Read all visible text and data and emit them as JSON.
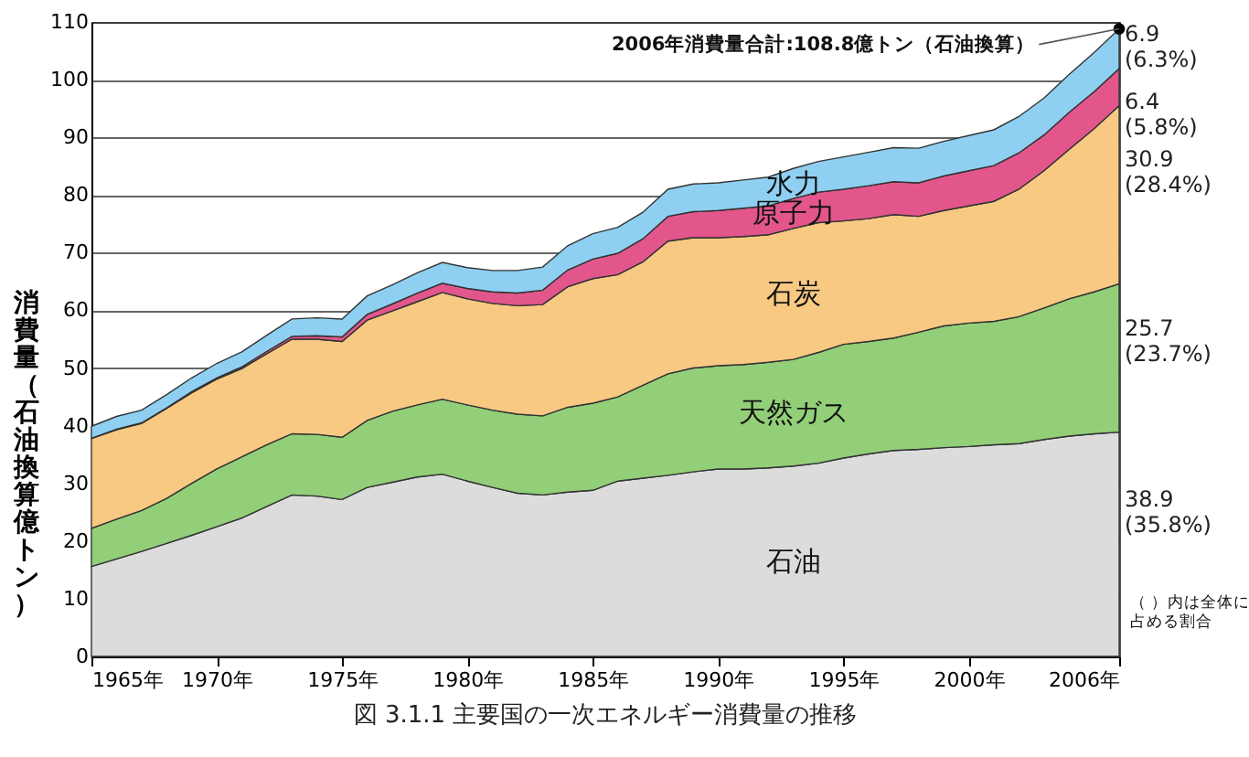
{
  "chart_data": {
    "type": "area",
    "title": "図 3.1.1 主要国の一次エネルギー消費量の推移",
    "ylabel": "消費量（石油換算億トン）",
    "stacked": true,
    "grid": "y",
    "x": [
      1965,
      1966,
      1967,
      1968,
      1969,
      1970,
      1971,
      1972,
      1973,
      1974,
      1975,
      1976,
      1977,
      1978,
      1979,
      1980,
      1981,
      1982,
      1983,
      1984,
      1985,
      1986,
      1987,
      1988,
      1989,
      1990,
      1991,
      1992,
      1993,
      1994,
      1995,
      1996,
      1997,
      1998,
      1999,
      2000,
      2001,
      2002,
      2003,
      2004,
      2005,
      2006
    ],
    "xlim": [
      1965,
      2006
    ],
    "xticks": [
      {
        "value": 1965,
        "label": "1965年"
      },
      {
        "value": 1970,
        "label": "1970年"
      },
      {
        "value": 1975,
        "label": "1975年"
      },
      {
        "value": 1980,
        "label": "1980年"
      },
      {
        "value": 1985,
        "label": "1985年"
      },
      {
        "value": 1990,
        "label": "1990年"
      },
      {
        "value": 1995,
        "label": "1995年"
      },
      {
        "value": 2000,
        "label": "2000年"
      },
      {
        "value": 2006,
        "label": "2006年"
      }
    ],
    "ylim": [
      0,
      110
    ],
    "yticks": [
      0,
      10,
      20,
      30,
      40,
      50,
      60,
      70,
      80,
      90,
      100,
      110
    ],
    "series": [
      {
        "name": "石油",
        "color": "#dcdcdc",
        "values": [
          15.6,
          16.9,
          18.2,
          19.6,
          21.0,
          22.5,
          24.0,
          26.0,
          28.0,
          27.8,
          27.2,
          29.3,
          30.2,
          31.1,
          31.6,
          30.4,
          29.3,
          28.3,
          28.0,
          28.5,
          28.8,
          30.4,
          30.9,
          31.4,
          32.0,
          32.5,
          32.5,
          32.7,
          33.0,
          33.5,
          34.4,
          35.1,
          35.7,
          35.9,
          36.2,
          36.4,
          36.7,
          36.9,
          37.6,
          38.2,
          38.6,
          38.9
        ],
        "value_labels": [
          null,
          null,
          null,
          null,
          null,
          null,
          null,
          null,
          null,
          null,
          null,
          null,
          null,
          null,
          null,
          null,
          null,
          null,
          null,
          null,
          null,
          null,
          null,
          null,
          null,
          null,
          null,
          null,
          null,
          null,
          null,
          null,
          null,
          null,
          null,
          null,
          null,
          null,
          null,
          null,
          null,
          "38.9\n(35.8%)"
        ]
      },
      {
        "name": "天然ガス",
        "color": "#92cf78",
        "values": [
          6.6,
          6.9,
          7.1,
          7.8,
          9.0,
          10.0,
          10.6,
          10.7,
          10.6,
          10.7,
          10.8,
          11.6,
          12.3,
          12.5,
          13.0,
          13.2,
          13.4,
          13.7,
          13.7,
          14.7,
          15.1,
          14.6,
          16.1,
          17.6,
          18.0,
          17.9,
          18.1,
          18.3,
          18.5,
          19.2,
          19.7,
          19.5,
          19.5,
          20.3,
          21.1,
          21.4,
          21.4,
          22.0,
          22.8,
          23.8,
          24.6,
          25.7
        ],
        "value_labels": [
          null,
          null,
          null,
          null,
          null,
          null,
          null,
          null,
          null,
          null,
          null,
          null,
          null,
          null,
          null,
          null,
          null,
          null,
          null,
          null,
          null,
          null,
          null,
          null,
          null,
          null,
          null,
          null,
          null,
          null,
          null,
          null,
          null,
          null,
          null,
          null,
          null,
          null,
          null,
          null,
          null,
          "25.7\n(23.7%)"
        ]
      },
      {
        "name": "石炭",
        "color": "#f8c983",
        "values": [
          15.6,
          15.5,
          15.1,
          15.6,
          15.7,
          15.6,
          15.3,
          15.8,
          16.4,
          16.5,
          16.6,
          17.4,
          17.4,
          17.9,
          18.5,
          18.4,
          18.5,
          18.8,
          19.3,
          20.9,
          21.6,
          21.2,
          21.4,
          23.0,
          22.6,
          22.2,
          22.2,
          22.1,
          22.7,
          22.5,
          21.4,
          21.3,
          21.4,
          20.1,
          20.0,
          20.3,
          20.8,
          22.1,
          23.8,
          25.9,
          28.3,
          30.9
        ],
        "value_labels": [
          null,
          null,
          null,
          null,
          null,
          null,
          null,
          null,
          null,
          null,
          null,
          null,
          null,
          null,
          null,
          null,
          null,
          null,
          null,
          null,
          null,
          null,
          null,
          null,
          null,
          null,
          null,
          null,
          null,
          null,
          null,
          null,
          null,
          null,
          null,
          null,
          null,
          null,
          null,
          null,
          null,
          "30.9\n(28.4%)"
        ]
      },
      {
        "name": "原子力",
        "color": "#e2568b",
        "values": [
          0,
          0.1,
          0.1,
          0.1,
          0.2,
          0.2,
          0.3,
          0.4,
          0.5,
          0.6,
          0.8,
          1.0,
          1.2,
          1.5,
          1.6,
          1.8,
          2.0,
          2.2,
          2.5,
          2.9,
          3.4,
          3.7,
          4.0,
          4.3,
          4.5,
          4.7,
          4.9,
          5.0,
          5.2,
          5.3,
          5.5,
          5.7,
          5.7,
          5.8,
          6.0,
          6.1,
          6.2,
          6.3,
          6.2,
          6.4,
          6.4,
          6.4
        ],
        "value_labels": [
          null,
          null,
          null,
          null,
          null,
          null,
          null,
          null,
          null,
          null,
          null,
          null,
          null,
          null,
          null,
          null,
          null,
          null,
          null,
          null,
          null,
          null,
          null,
          null,
          null,
          null,
          null,
          null,
          null,
          null,
          null,
          null,
          null,
          null,
          null,
          null,
          null,
          null,
          null,
          null,
          null,
          "6.4\n(5.8%)"
        ]
      },
      {
        "name": "水力",
        "color": "#8fd0f2",
        "values": [
          2.1,
          2.2,
          2.2,
          2.3,
          2.4,
          2.5,
          2.6,
          2.8,
          3.0,
          3.1,
          3.1,
          3.2,
          3.3,
          3.5,
          3.6,
          3.6,
          3.7,
          3.9,
          4.0,
          4.2,
          4.4,
          4.5,
          4.6,
          4.7,
          4.8,
          4.8,
          4.9,
          5.0,
          5.2,
          5.3,
          5.6,
          5.8,
          5.9,
          6.0,
          6.0,
          6.1,
          6.2,
          6.3,
          6.4,
          6.6,
          6.8,
          6.9
        ],
        "value_labels": [
          null,
          null,
          null,
          null,
          null,
          null,
          null,
          null,
          null,
          null,
          null,
          null,
          null,
          null,
          null,
          null,
          null,
          null,
          null,
          null,
          null,
          null,
          null,
          null,
          null,
          null,
          null,
          null,
          null,
          null,
          null,
          null,
          null,
          null,
          null,
          null,
          null,
          null,
          null,
          null,
          null,
          "6.9\n(6.3%)"
        ]
      }
    ],
    "annotations": [
      {
        "text": "2006年消費量合計:108.8億トン（石油換算）",
        "x": 2006,
        "y": 108.8
      },
      "（ ）内は全体に占める割合"
    ]
  }
}
